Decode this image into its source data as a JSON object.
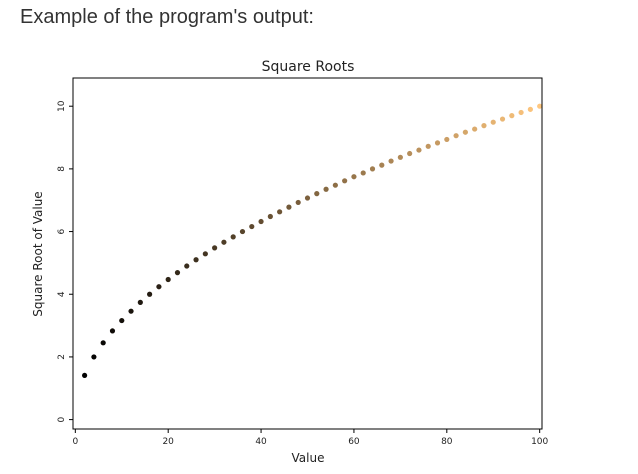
{
  "caption": "Example of the program's output:",
  "chart_data": {
    "type": "scatter",
    "title": "Square Roots",
    "xlabel": "Value",
    "ylabel": "Square Root of Value",
    "xlim": [
      -0.5,
      100.5
    ],
    "ylim": [
      -0.3,
      10.9
    ],
    "xticks": [
      0,
      20,
      40,
      60,
      80,
      100
    ],
    "yticks": [
      0,
      2,
      4,
      6,
      8,
      10
    ],
    "grid": false,
    "colormap": "copper",
    "colormap_start": "#000000",
    "colormap_end": "#ffc77f",
    "x": [
      2,
      4,
      6,
      8,
      10,
      12,
      14,
      16,
      18,
      20,
      22,
      24,
      26,
      28,
      30,
      32,
      34,
      36,
      38,
      40,
      42,
      44,
      46,
      48,
      50,
      52,
      54,
      56,
      58,
      60,
      62,
      64,
      66,
      68,
      70,
      72,
      74,
      76,
      78,
      80,
      82,
      84,
      86,
      88,
      90,
      92,
      94,
      96,
      98,
      100
    ],
    "y": [
      1.41,
      2.0,
      2.45,
      2.83,
      3.16,
      3.46,
      3.74,
      4.0,
      4.24,
      4.47,
      4.69,
      4.9,
      5.1,
      5.29,
      5.48,
      5.66,
      5.83,
      6.0,
      6.16,
      6.32,
      6.48,
      6.63,
      6.78,
      6.93,
      7.07,
      7.21,
      7.35,
      7.48,
      7.62,
      7.75,
      7.87,
      8.0,
      8.12,
      8.25,
      8.37,
      8.49,
      8.6,
      8.72,
      8.83,
      8.94,
      9.06,
      9.17,
      9.27,
      9.38,
      9.49,
      9.59,
      9.7,
      9.8,
      9.9,
      10.0
    ]
  }
}
